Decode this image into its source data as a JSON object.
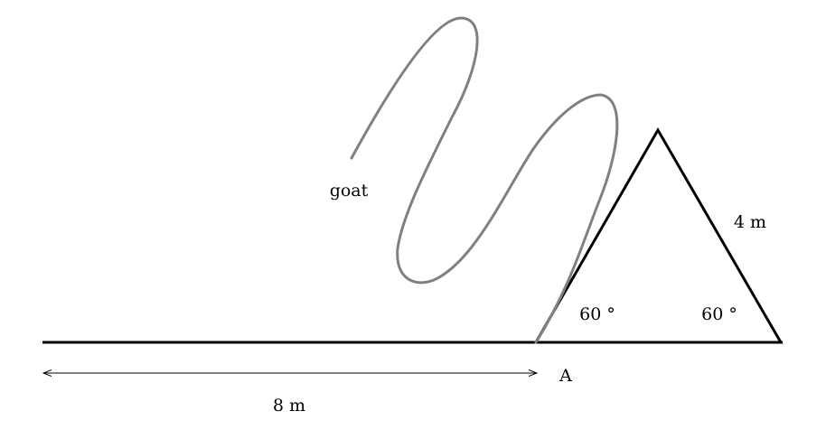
{
  "diagram": {
    "labels": {
      "goat": "goat",
      "side_length": "4 m",
      "left_angle": "60 °",
      "right_angle": "60 °",
      "point": "A",
      "distance": "8 m"
    },
    "colors": {
      "lines": "#000000",
      "goat_path": "#808080",
      "background": "#ffffff"
    }
  }
}
